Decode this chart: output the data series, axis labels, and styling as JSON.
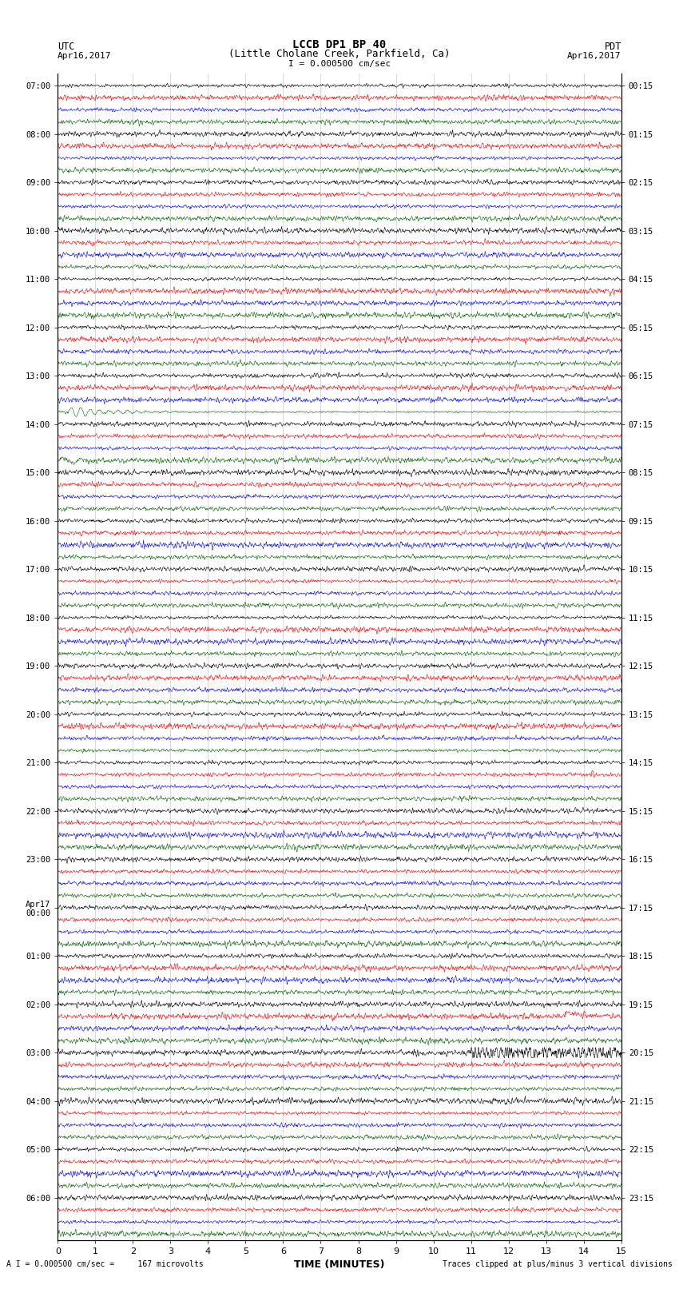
{
  "title_line1": "LCCB DP1 BP 40",
  "title_line2": "(Little Cholane Creek, Parkfield, Ca)",
  "scale_label": "I = 0.000500 cm/sec",
  "utc_label": "UTC",
  "pdt_label": "PDT",
  "date_left": "Apr16,2017",
  "date_right": "Apr16,2017",
  "xlabel": "TIME (MINUTES)",
  "footer_left": "A I = 0.000500 cm/sec =     167 microvolts",
  "footer_right": "Traces clipped at plus/minus 3 vertical divisions",
  "utc_times": [
    "07:00",
    "",
    "",
    "",
    "08:00",
    "",
    "",
    "",
    "09:00",
    "",
    "",
    "",
    "10:00",
    "",
    "",
    "",
    "11:00",
    "",
    "",
    "",
    "12:00",
    "",
    "",
    "",
    "13:00",
    "",
    "",
    "",
    "14:00",
    "",
    "",
    "",
    "15:00",
    "",
    "",
    "",
    "16:00",
    "",
    "",
    "",
    "17:00",
    "",
    "",
    "",
    "18:00",
    "",
    "",
    "",
    "19:00",
    "",
    "",
    "",
    "20:00",
    "",
    "",
    "",
    "21:00",
    "",
    "",
    "",
    "22:00",
    "",
    "",
    "",
    "23:00",
    "",
    "",
    "",
    "Apr17\n00:00",
    "",
    "",
    "",
    "01:00",
    "",
    "",
    "",
    "02:00",
    "",
    "",
    "",
    "03:00",
    "",
    "",
    "",
    "04:00",
    "",
    "",
    "",
    "05:00",
    "",
    "",
    "",
    "06:00",
    "",
    "",
    ""
  ],
  "pdt_times": [
    "00:15",
    "",
    "",
    "",
    "01:15",
    "",
    "",
    "",
    "02:15",
    "",
    "",
    "",
    "03:15",
    "",
    "",
    "",
    "04:15",
    "",
    "",
    "",
    "05:15",
    "",
    "",
    "",
    "06:15",
    "",
    "",
    "",
    "07:15",
    "",
    "",
    "",
    "08:15",
    "",
    "",
    "",
    "09:15",
    "",
    "",
    "",
    "10:15",
    "",
    "",
    "",
    "11:15",
    "",
    "",
    "",
    "12:15",
    "",
    "",
    "",
    "13:15",
    "",
    "",
    "",
    "14:15",
    "",
    "",
    "",
    "15:15",
    "",
    "",
    "",
    "16:15",
    "",
    "",
    "",
    "17:15",
    "",
    "",
    "",
    "18:15",
    "",
    "",
    "",
    "19:15",
    "",
    "",
    "",
    "20:15",
    "",
    "",
    "",
    "21:15",
    "",
    "",
    "",
    "22:15",
    "",
    "",
    "",
    "23:15",
    "",
    "",
    ""
  ],
  "n_rows": 96,
  "n_cols": 4,
  "colors": [
    "black",
    "red",
    "blue",
    "#006400"
  ],
  "bg_color": "white",
  "fig_width": 8.5,
  "fig_height": 16.13,
  "xlim": [
    0,
    15
  ],
  "noise_base": 0.12
}
